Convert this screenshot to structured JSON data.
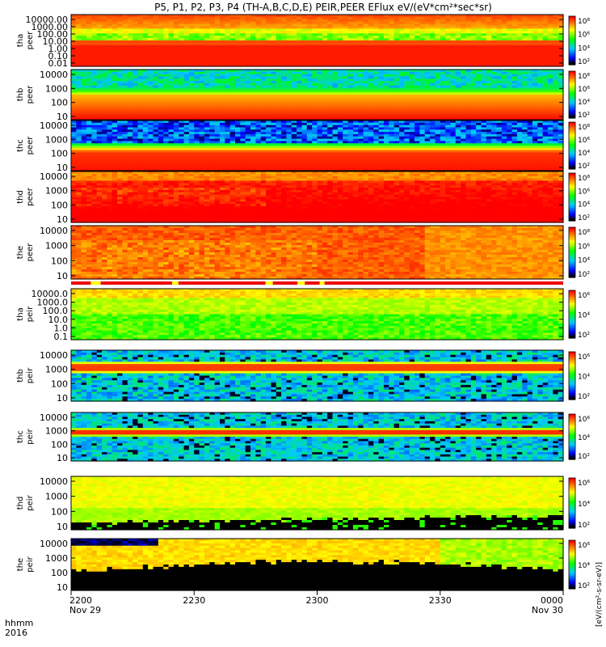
{
  "title": "P5, P1, P2, P3, P4 (TH-A,B,C,D,E) PEIR,PEER EFlux eV/(eV*cm²*sec*sr)",
  "x_axis": {
    "label_line1": "hhmm",
    "label_line2": "2016",
    "ticks": [
      {
        "label": "2200",
        "sub": "Nov 29",
        "frac": 0.0
      },
      {
        "label": "2230",
        "sub": "",
        "frac": 0.25
      },
      {
        "label": "2300",
        "sub": "",
        "frac": 0.5
      },
      {
        "label": "2330",
        "sub": "",
        "frac": 0.75
      },
      {
        "label": "0000",
        "sub": "Nov 30",
        "frac": 1.0
      }
    ]
  },
  "colorbar_label": "[eV/(cm²-s-sr-eV)]",
  "chart_data": {
    "type": "heatmap",
    "x_range": [
      "2016-11-29 22:00",
      "2016-11-30 00:00"
    ],
    "colorscale": [
      "#000000",
      "#0000ff",
      "#00ffff",
      "#00ff00",
      "#ffff00",
      "#ff0000"
    ],
    "panels": [
      {
        "id": "tha-peer",
        "ylabel": [
          "tha",
          "peer"
        ],
        "yticks": [
          "10000.00",
          "1000.00",
          "100.00",
          "10.00",
          "1.00",
          "0.10",
          "0.01"
        ],
        "cbticks": [
          "10⁸",
          "10⁶",
          "10⁴",
          "10²"
        ],
        "style": "tha-peer",
        "flag": false
      },
      {
        "id": "thb-peer",
        "ylabel": [
          "thb",
          "peer"
        ],
        "yticks": [
          "10000",
          "1000",
          "100",
          "10"
        ],
        "cbticks": [
          "10⁸",
          "10⁶",
          "10⁴",
          "10²"
        ],
        "style": "thb-peer",
        "flag": false
      },
      {
        "id": "thc-peer",
        "ylabel": [
          "thc",
          "peer"
        ],
        "yticks": [
          "10000",
          "1000",
          "100",
          "10"
        ],
        "cbticks": [
          "10⁸",
          "10⁶",
          "10⁴",
          "10²"
        ],
        "style": "thc-peer",
        "flag": false
      },
      {
        "id": "thd-peer",
        "ylabel": [
          "thd",
          "peer"
        ],
        "yticks": [
          "10000",
          "1000",
          "100",
          "10"
        ],
        "cbticks": [
          "10⁸",
          "10⁶",
          "10⁴",
          "10²"
        ],
        "style": "thd-peer",
        "flag": false
      },
      {
        "id": "the-peer",
        "ylabel": [
          "the",
          "peer"
        ],
        "yticks": [
          "10000",
          "1000",
          "100",
          "10"
        ],
        "cbticks": [
          "10⁸",
          "10⁶",
          "10⁴",
          "10²"
        ],
        "style": "the-peer",
        "flag": true
      },
      {
        "id": "tha-peir",
        "ylabel": [
          "tha",
          "peir"
        ],
        "yticks": [
          "10000.0",
          "1000.0",
          "100.0",
          "10.0",
          "1.0",
          "0.1"
        ],
        "cbticks": [
          "10⁶",
          "10⁴",
          "10²"
        ],
        "style": "tha-peir",
        "flag": false
      },
      {
        "id": "thb-peir",
        "ylabel": [
          "thb",
          "peir"
        ],
        "yticks": [
          "10000",
          "1000",
          "100",
          "10"
        ],
        "cbticks": [
          "10⁶",
          "10⁴",
          "10²"
        ],
        "style": "thb-peir",
        "flag": false
      },
      {
        "id": "thc-peir",
        "ylabel": [
          "thc",
          "peir"
        ],
        "yticks": [
          "10000",
          "1000",
          "100",
          "10"
        ],
        "cbticks": [
          "10⁶",
          "10⁴",
          "10²"
        ],
        "style": "thc-peir",
        "flag": false
      },
      {
        "id": "thd-peir",
        "ylabel": [
          "thd",
          "peir"
        ],
        "yticks": [
          "10000",
          "1000",
          "100",
          "10"
        ],
        "cbticks": [
          "10⁶",
          "10⁴",
          "10²"
        ],
        "style": "thd-peir",
        "flag": false
      },
      {
        "id": "the-peir",
        "ylabel": [
          "the",
          "peir"
        ],
        "yticks": [
          "10000",
          "1000",
          "100",
          "10"
        ],
        "cbticks": [
          "10⁶",
          "10⁴",
          "10²"
        ],
        "style": "the-peir",
        "flag": false
      }
    ]
  }
}
